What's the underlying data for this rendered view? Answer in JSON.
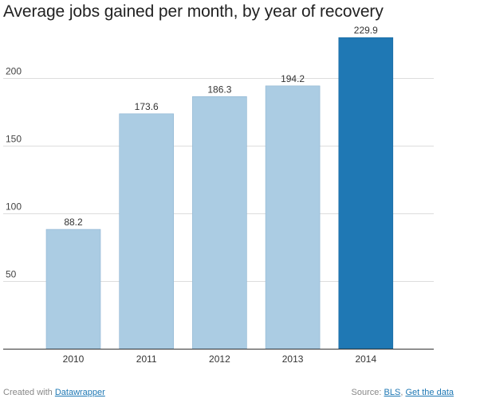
{
  "chart_data": {
    "type": "bar",
    "title": "Average jobs gained per month, by year of recovery",
    "xlabel": "",
    "ylabel": "",
    "categories": [
      "2010",
      "2011",
      "2012",
      "2013",
      "2014"
    ],
    "values": [
      88.2,
      173.6,
      186.3,
      194.2,
      229.9
    ],
    "value_labels": [
      "88.2",
      "173.6",
      "186.3",
      "194.2",
      "229.9"
    ],
    "ylim": [
      0,
      230
    ],
    "yticks": [
      50,
      100,
      150,
      200
    ],
    "grid": true,
    "legend": "none",
    "colors": {
      "default": "#abcce3",
      "highlight": "#1f78b4",
      "highlight_category": "2014"
    }
  },
  "footer": {
    "created_prefix": "Created with",
    "created_link": "Datawrapper",
    "source_prefix": "Source:",
    "source_link": "BLS",
    "separator": ",",
    "data_link": "Get the data"
  }
}
